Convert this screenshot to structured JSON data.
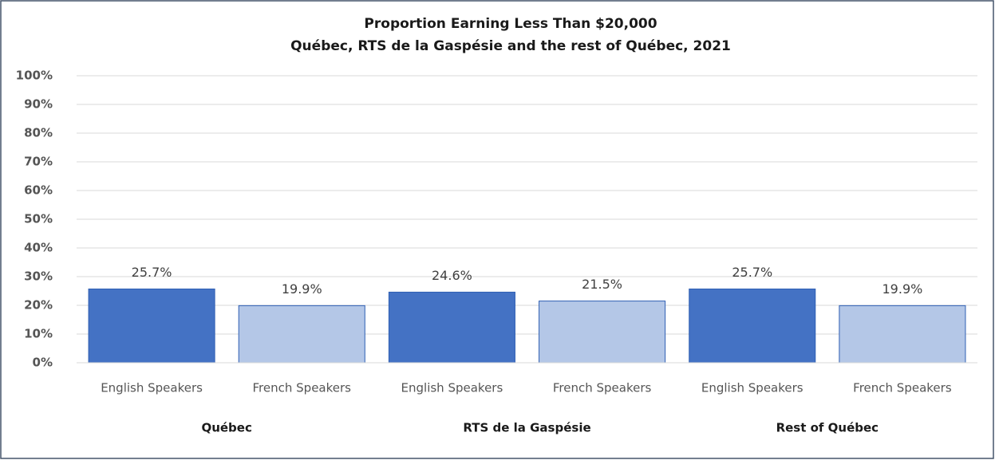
{
  "chart_data": {
    "type": "bar",
    "title": "Proportion Earning Less Than $20,000",
    "subtitle": "Québec, RTS de la Gaspésie and the rest of Québec, 2021",
    "categories": [
      "English Speakers",
      "French Speakers",
      "English Speakers",
      "French Speakers",
      "English Speakers",
      "French Speakers"
    ],
    "groups": [
      "Québec",
      "RTS de la Gaspésie",
      "Rest of Québec"
    ],
    "values": [
      25.7,
      19.9,
      24.6,
      21.5,
      25.7,
      19.9
    ],
    "value_labels": [
      "25.7%",
      "19.9%",
      "24.6%",
      "21.5%",
      "25.7%",
      "19.9%"
    ],
    "colors": [
      "#4472c4",
      "#b4c7e7",
      "#4472c4",
      "#b4c7e7",
      "#4472c4",
      "#b4c7e7"
    ],
    "ylim": [
      0,
      100
    ],
    "yticks": [
      {
        "value": 0,
        "label": "0%"
      },
      {
        "value": 10,
        "label": "10%"
      },
      {
        "value": 20,
        "label": "20%"
      },
      {
        "value": 30,
        "label": "30%"
      },
      {
        "value": 40,
        "label": "40%"
      },
      {
        "value": 50,
        "label": "50%"
      },
      {
        "value": 60,
        "label": "60%"
      },
      {
        "value": 70,
        "label": "70%"
      },
      {
        "value": 80,
        "label": "80%"
      },
      {
        "value": 90,
        "label": "90%"
      },
      {
        "value": 100,
        "label": "100%"
      }
    ],
    "grid": true
  }
}
